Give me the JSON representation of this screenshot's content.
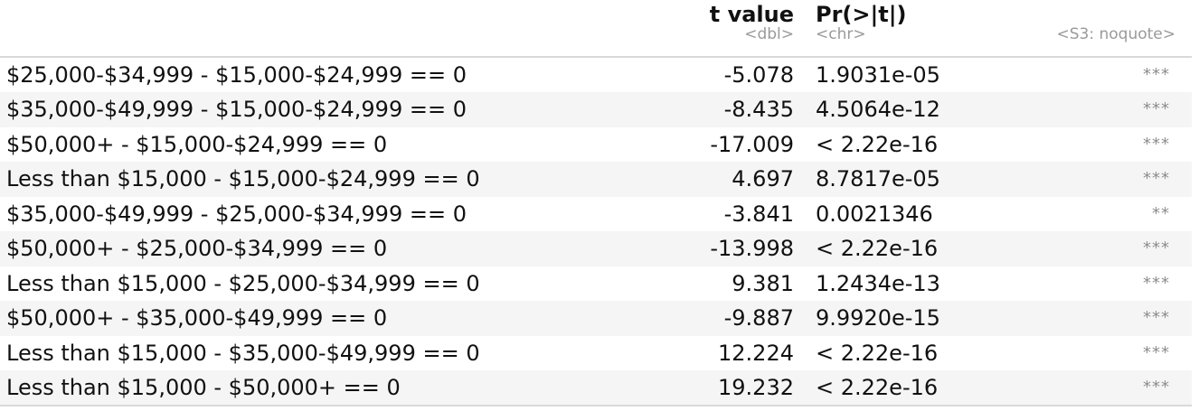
{
  "header": {
    "columns": [
      {
        "title": "",
        "type": ""
      },
      {
        "title": "t value",
        "type": "<dbl>"
      },
      {
        "title": "Pr(>|t|)",
        "type": "<chr>"
      },
      {
        "title": "",
        "type": "<S3: noquote>"
      }
    ]
  },
  "rows": [
    {
      "label": "$25,000-$34,999 - $15,000-$24,999 == 0",
      "t_value": "-5.078",
      "p_value": "1.9031e-05",
      "signif": "***"
    },
    {
      "label": "$35,000-$49,999 - $15,000-$24,999 == 0",
      "t_value": "-8.435",
      "p_value": "4.5064e-12",
      "signif": "***"
    },
    {
      "label": "$50,000+ - $15,000-$24,999 == 0",
      "t_value": "-17.009",
      "p_value": "< 2.22e-16",
      "signif": "***"
    },
    {
      "label": "Less than $15,000 - $15,000-$24,999 == 0",
      "t_value": "4.697",
      "p_value": "8.7817e-05",
      "signif": "***"
    },
    {
      "label": "$35,000-$49,999 - $25,000-$34,999 == 0",
      "t_value": "-3.841",
      "p_value": "0.0021346",
      "signif": "**"
    },
    {
      "label": "$50,000+ - $25,000-$34,999 == 0",
      "t_value": "-13.998",
      "p_value": "< 2.22e-16",
      "signif": "***"
    },
    {
      "label": "Less than $15,000 - $25,000-$34,999 == 0",
      "t_value": "9.381",
      "p_value": "1.2434e-13",
      "signif": "***"
    },
    {
      "label": "$50,000+ - $35,000-$49,999 == 0",
      "t_value": "-9.887",
      "p_value": "9.9920e-15",
      "signif": "***"
    },
    {
      "label": "Less than $15,000 - $35,000-$49,999 == 0",
      "t_value": "12.224",
      "p_value": "< 2.22e-16",
      "signif": "***"
    },
    {
      "label": "Less than $15,000 - $50,000+ == 0",
      "t_value": "19.232",
      "p_value": "< 2.22e-16",
      "signif": "***"
    }
  ]
}
